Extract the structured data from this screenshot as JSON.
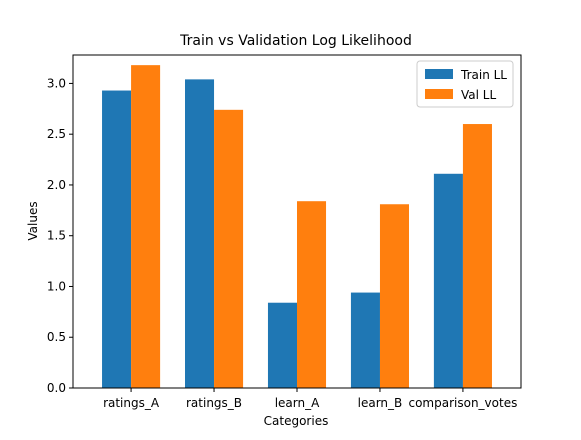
{
  "chart_data": {
    "type": "bar",
    "title": "Train vs Validation Log Likelihood",
    "xlabel": "Categories",
    "ylabel": "Values",
    "categories": [
      "ratings_A",
      "ratings_B",
      "learn_A",
      "learn_B",
      "comparison_votes"
    ],
    "series": [
      {
        "name": "Train LL",
        "color": "#1f77b4",
        "values": [
          2.93,
          3.04,
          0.84,
          0.94,
          2.11
        ]
      },
      {
        "name": "Val LL",
        "color": "#ff7f0e",
        "values": [
          3.18,
          2.74,
          1.84,
          1.81,
          2.6
        ]
      }
    ],
    "ylim": [
      0,
      3.28
    ],
    "yticks": [
      "0.0",
      "0.5",
      "1.0",
      "1.5",
      "2.0",
      "2.5",
      "3.0"
    ],
    "grid": false,
    "legend_position": "top-right"
  }
}
